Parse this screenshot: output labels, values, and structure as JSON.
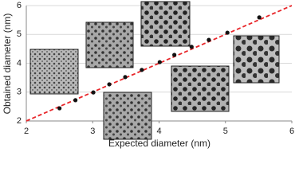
{
  "chart_data": {
    "type": "scatter",
    "x_label": "Expected diameter (nm)",
    "y_label": "Obtained diameter (nm)",
    "x": [
      2.5,
      2.74,
      3.01,
      3.25,
      3.49,
      3.74,
      4.01,
      4.23,
      4.49,
      4.75,
      5.03,
      5.51
    ],
    "values": [
      2.44,
      2.72,
      2.99,
      3.27,
      3.52,
      3.77,
      4.04,
      4.29,
      4.57,
      4.81,
      5.06,
      5.59
    ],
    "color": "#111111",
    "line": {
      "x": [
        2,
        6
      ],
      "values": [
        2,
        6
      ],
      "color": "#e8262a",
      "dashed": true
    },
    "xlim": [
      2,
      6
    ],
    "xticks": [
      2,
      3,
      4,
      5,
      6
    ],
    "ylim": [
      2,
      6
    ],
    "yticks": [
      2,
      3,
      4,
      5,
      6
    ],
    "grid": true
  }
}
